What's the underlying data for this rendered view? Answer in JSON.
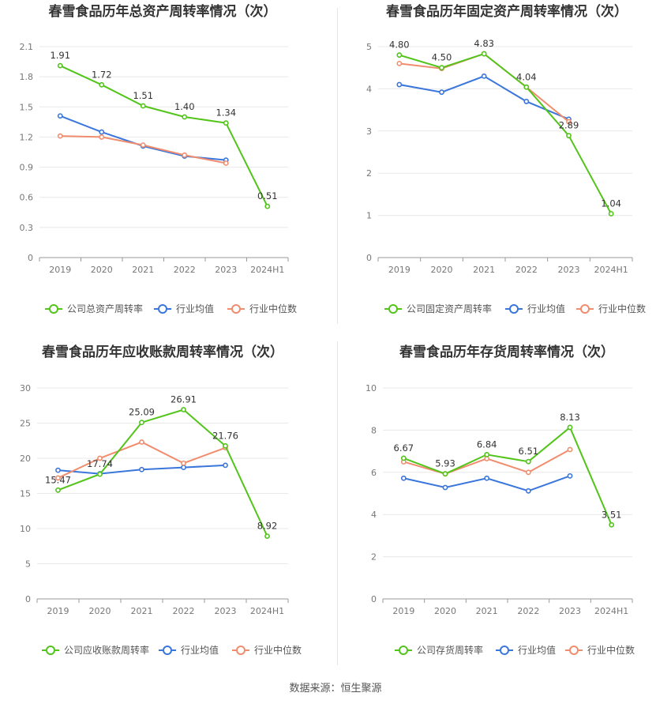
{
  "source": "数据来源：恒生聚源",
  "colors": {
    "company": "#52c41a",
    "avg": "#3a76dc",
    "median": "#f08d6e",
    "grid": "#e8e8e8",
    "axis": "#999999"
  },
  "chart_data": [
    {
      "type": "line",
      "title": "春雪食品历年总资产周转率情况（次）",
      "categories": [
        "2019",
        "2020",
        "2021",
        "2022",
        "2023",
        "2024H1"
      ],
      "yticks": [
        "0",
        "0.3",
        "0.6",
        "0.9",
        "1.2",
        "1.5",
        "1.8",
        "2.1"
      ],
      "ylim": [
        0,
        2.1
      ],
      "grid": true,
      "legend_position": "bottom",
      "series": [
        {
          "name": "公司总资产周转率",
          "key": "company",
          "values": [
            1.91,
            1.72,
            1.51,
            1.4,
            1.34,
            0.51
          ],
          "labels": [
            "1.91",
            "1.72",
            "1.51",
            "1.40",
            "1.34",
            "0.51"
          ]
        },
        {
          "name": "行业均值",
          "key": "avg",
          "values": [
            1.41,
            1.25,
            1.11,
            1.01,
            0.97,
            null
          ]
        },
        {
          "name": "行业中位数",
          "key": "median",
          "values": [
            1.21,
            1.2,
            1.12,
            1.02,
            0.94,
            null
          ]
        }
      ]
    },
    {
      "type": "line",
      "title": "春雪食品历年固定资产周转率情况（次）",
      "categories": [
        "2019",
        "2020",
        "2021",
        "2022",
        "2023",
        "2024H1"
      ],
      "yticks": [
        "0",
        "1",
        "2",
        "3",
        "4",
        "5"
      ],
      "ylim": [
        0,
        5
      ],
      "grid": true,
      "legend_position": "bottom",
      "series": [
        {
          "name": "公司固定资产周转率",
          "key": "company",
          "values": [
            4.8,
            4.5,
            4.83,
            4.04,
            2.89,
            1.04
          ],
          "labels": [
            "4.80",
            "4.50",
            "4.83",
            "4.04",
            "2.89",
            "1.04"
          ]
        },
        {
          "name": "行业均值",
          "key": "avg",
          "values": [
            4.1,
            3.92,
            4.3,
            3.7,
            3.28,
            null
          ]
        },
        {
          "name": "行业中位数",
          "key": "median",
          "values": [
            4.6,
            4.48,
            4.83,
            4.04,
            3.22,
            null
          ]
        }
      ]
    },
    {
      "type": "line",
      "title": "春雪食品历年应收账款周转率情况（次）",
      "categories": [
        "2019",
        "2020",
        "2021",
        "2022",
        "2023",
        "2024H1"
      ],
      "yticks": [
        "0",
        "5",
        "10",
        "15",
        "20",
        "25",
        "30"
      ],
      "ylim": [
        0,
        30
      ],
      "grid": true,
      "legend_position": "bottom",
      "series": [
        {
          "name": "公司应收账款周转率",
          "key": "company",
          "values": [
            15.47,
            17.74,
            25.09,
            26.91,
            21.76,
            8.92
          ],
          "labels": [
            "15.47",
            "17.74",
            "25.09",
            "26.91",
            "21.76",
            "8.92"
          ]
        },
        {
          "name": "行业均值",
          "key": "avg",
          "values": [
            18.3,
            17.8,
            18.4,
            18.7,
            19.0,
            null
          ]
        },
        {
          "name": "行业中位数",
          "key": "median",
          "values": [
            17.2,
            20.0,
            22.3,
            19.3,
            21.5,
            null
          ]
        }
      ]
    },
    {
      "type": "line",
      "title": "春雪食品历年存货周转率情况（次）",
      "categories": [
        "2019",
        "2020",
        "2021",
        "2022",
        "2023",
        "2024H1"
      ],
      "yticks": [
        "0",
        "2",
        "4",
        "6",
        "8",
        "10"
      ],
      "ylim": [
        0,
        10
      ],
      "grid": true,
      "legend_position": "bottom",
      "series": [
        {
          "name": "公司存货周转率",
          "key": "company",
          "values": [
            6.67,
            5.93,
            6.84,
            6.51,
            8.13,
            3.51
          ],
          "labels": [
            "6.67",
            "5.93",
            "6.84",
            "6.51",
            "8.13",
            "3.51"
          ]
        },
        {
          "name": "行业均值",
          "key": "avg",
          "values": [
            5.72,
            5.28,
            5.72,
            5.12,
            5.83,
            null
          ]
        },
        {
          "name": "行业中位数",
          "key": "median",
          "values": [
            6.5,
            5.93,
            6.65,
            6.0,
            7.08,
            null
          ]
        }
      ]
    }
  ]
}
